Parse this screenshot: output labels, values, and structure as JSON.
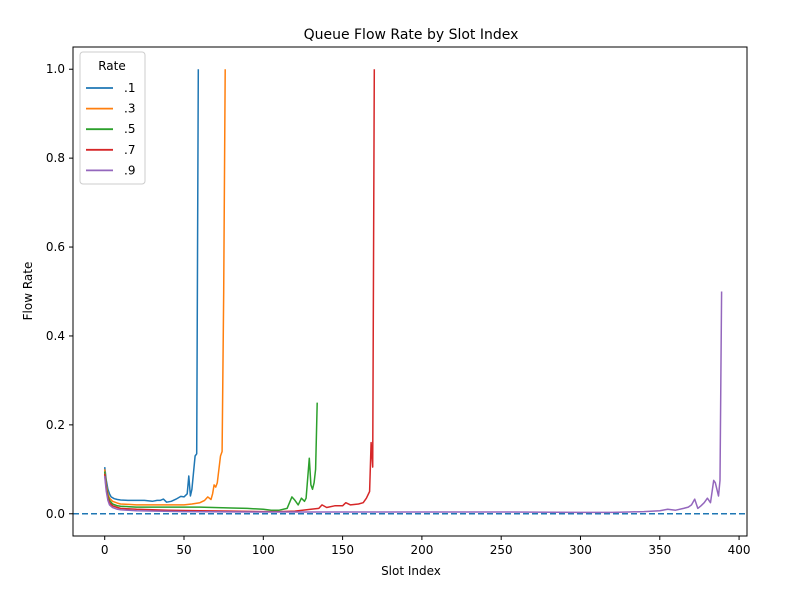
{
  "chart_data": {
    "type": "line",
    "title": "Queue Flow Rate by Slot Index",
    "xlabel": "Slot Index",
    "ylabel": "Flow Rate",
    "xlim": [
      -20,
      405
    ],
    "ylim": [
      -0.05,
      1.05
    ],
    "xticks": [
      0,
      50,
      100,
      150,
      200,
      250,
      300,
      350,
      400
    ],
    "yticks": [
      0.0,
      0.2,
      0.4,
      0.6,
      0.8,
      1.0
    ],
    "xtick_labels": [
      "0",
      "50",
      "100",
      "150",
      "200",
      "250",
      "300",
      "350",
      "400"
    ],
    "ytick_labels": [
      "0.0",
      "0.2",
      "0.4",
      "0.6",
      "0.8",
      "1.0"
    ],
    "legend": {
      "title": "Rate",
      "position": "top-left"
    },
    "reference_line": {
      "y": 0.0,
      "style": "dashed",
      "color": "#1f77b4"
    },
    "series": [
      {
        "name": ".1",
        "color": "#1f77b4",
        "points": [
          [
            0,
            0.105
          ],
          [
            1,
            0.075
          ],
          [
            2,
            0.055
          ],
          [
            3,
            0.045
          ],
          [
            4,
            0.038
          ],
          [
            6,
            0.034
          ],
          [
            8,
            0.032
          ],
          [
            10,
            0.031
          ],
          [
            15,
            0.03
          ],
          [
            20,
            0.03
          ],
          [
            25,
            0.03
          ],
          [
            30,
            0.028
          ],
          [
            33,
            0.03
          ],
          [
            35,
            0.03
          ],
          [
            37,
            0.033
          ],
          [
            39,
            0.026
          ],
          [
            42,
            0.028
          ],
          [
            45,
            0.033
          ],
          [
            48,
            0.039
          ],
          [
            50,
            0.038
          ],
          [
            52,
            0.045
          ],
          [
            53,
            0.085
          ],
          [
            54,
            0.04
          ],
          [
            55,
            0.055
          ],
          [
            57,
            0.13
          ],
          [
            58,
            0.135
          ],
          [
            59,
            1.0
          ]
        ]
      },
      {
        "name": ".3",
        "color": "#ff7f0e",
        "points": [
          [
            0,
            0.1
          ],
          [
            1,
            0.065
          ],
          [
            2,
            0.045
          ],
          [
            3,
            0.035
          ],
          [
            5,
            0.028
          ],
          [
            8,
            0.024
          ],
          [
            10,
            0.022
          ],
          [
            15,
            0.021
          ],
          [
            20,
            0.02
          ],
          [
            30,
            0.02
          ],
          [
            40,
            0.02
          ],
          [
            50,
            0.02
          ],
          [
            55,
            0.022
          ],
          [
            60,
            0.025
          ],
          [
            63,
            0.03
          ],
          [
            65,
            0.038
          ],
          [
            67,
            0.032
          ],
          [
            68,
            0.045
          ],
          [
            69,
            0.065
          ],
          [
            70,
            0.06
          ],
          [
            71,
            0.07
          ],
          [
            72,
            0.1
          ],
          [
            73,
            0.13
          ],
          [
            74,
            0.14
          ],
          [
            75,
            0.5
          ],
          [
            76,
            1.0
          ]
        ]
      },
      {
        "name": ".5",
        "color": "#2ca02c",
        "points": [
          [
            0,
            0.095
          ],
          [
            1,
            0.06
          ],
          [
            2,
            0.04
          ],
          [
            3,
            0.03
          ],
          [
            5,
            0.022
          ],
          [
            8,
            0.018
          ],
          [
            10,
            0.017
          ],
          [
            20,
            0.015
          ],
          [
            40,
            0.015
          ],
          [
            60,
            0.015
          ],
          [
            80,
            0.013
          ],
          [
            90,
            0.012
          ],
          [
            100,
            0.01
          ],
          [
            105,
            0.008
          ],
          [
            110,
            0.008
          ],
          [
            115,
            0.012
          ],
          [
            118,
            0.038
          ],
          [
            120,
            0.03
          ],
          [
            122,
            0.02
          ],
          [
            124,
            0.035
          ],
          [
            126,
            0.028
          ],
          [
            127,
            0.035
          ],
          [
            129,
            0.125
          ],
          [
            130,
            0.065
          ],
          [
            131,
            0.055
          ],
          [
            132,
            0.07
          ],
          [
            133,
            0.1
          ],
          [
            134,
            0.25
          ]
        ]
      },
      {
        "name": ".7",
        "color": "#d62728",
        "points": [
          [
            0,
            0.09
          ],
          [
            1,
            0.055
          ],
          [
            2,
            0.035
          ],
          [
            3,
            0.025
          ],
          [
            5,
            0.018
          ],
          [
            8,
            0.014
          ],
          [
            10,
            0.012
          ],
          [
            20,
            0.01
          ],
          [
            40,
            0.008
          ],
          [
            60,
            0.007
          ],
          [
            80,
            0.006
          ],
          [
            100,
            0.005
          ],
          [
            110,
            0.005
          ],
          [
            120,
            0.006
          ],
          [
            130,
            0.01
          ],
          [
            135,
            0.012
          ],
          [
            137,
            0.02
          ],
          [
            140,
            0.014
          ],
          [
            145,
            0.018
          ],
          [
            150,
            0.018
          ],
          [
            152,
            0.025
          ],
          [
            155,
            0.02
          ],
          [
            160,
            0.022
          ],
          [
            163,
            0.025
          ],
          [
            165,
            0.035
          ],
          [
            167,
            0.05
          ],
          [
            168,
            0.16
          ],
          [
            169,
            0.105
          ],
          [
            170,
            1.0
          ]
        ]
      },
      {
        "name": ".9",
        "color": "#9467bd",
        "points": [
          [
            0,
            0.085
          ],
          [
            1,
            0.05
          ],
          [
            2,
            0.03
          ],
          [
            3,
            0.02
          ],
          [
            5,
            0.014
          ],
          [
            8,
            0.01
          ],
          [
            10,
            0.009
          ],
          [
            20,
            0.007
          ],
          [
            50,
            0.005
          ],
          [
            100,
            0.004
          ],
          [
            150,
            0.004
          ],
          [
            200,
            0.004
          ],
          [
            250,
            0.004
          ],
          [
            300,
            0.003
          ],
          [
            320,
            0.003
          ],
          [
            330,
            0.004
          ],
          [
            340,
            0.005
          ],
          [
            350,
            0.007
          ],
          [
            355,
            0.01
          ],
          [
            360,
            0.008
          ],
          [
            365,
            0.012
          ],
          [
            368,
            0.015
          ],
          [
            370,
            0.02
          ],
          [
            372,
            0.033
          ],
          [
            374,
            0.012
          ],
          [
            376,
            0.018
          ],
          [
            378,
            0.025
          ],
          [
            380,
            0.035
          ],
          [
            382,
            0.025
          ],
          [
            384,
            0.075
          ],
          [
            385,
            0.07
          ],
          [
            386,
            0.055
          ],
          [
            387,
            0.04
          ],
          [
            388,
            0.075
          ],
          [
            389,
            0.5
          ]
        ]
      }
    ]
  }
}
